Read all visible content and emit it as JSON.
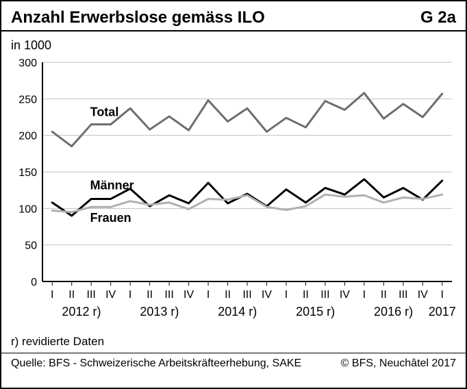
{
  "title": "Anzahl Erwerbslose gemäss ILO",
  "code": "G 2a",
  "subtitle": "in 1000",
  "note": "r) revidierte Daten",
  "source": "Quelle: BFS - Schweizerische Arbeitskräfteerhebung, SAKE",
  "copyright": "© BFS, Neuchâtel 2017",
  "chart": {
    "type": "line",
    "background_color": "#ffffff",
    "grid_color": "#bfbfbf",
    "grid_width": 1,
    "axis_color": "#000000",
    "axis_width": 2,
    "label_fontsize": 18,
    "tick_fontsize": 16,
    "ylim": [
      0,
      300
    ],
    "ytick_step": 50,
    "x_labels_minor": [
      "I",
      "II",
      "III",
      "IV",
      "I",
      "II",
      "III",
      "IV",
      "I",
      "II",
      "III",
      "IV",
      "I",
      "II",
      "III",
      "IV",
      "I",
      "II",
      "III",
      "IV",
      "I"
    ],
    "x_labels_major": [
      "2012 r)",
      "2013 r)",
      "2014 r)",
      "2015 r)",
      "2016 r)",
      "2017"
    ],
    "x_major_span": [
      4,
      4,
      4,
      4,
      4,
      1
    ],
    "series": {
      "total": {
        "label": "Total",
        "color": "#6d6d6d",
        "width": 3,
        "values": [
          205,
          185,
          215,
          215,
          237,
          208,
          226,
          207,
          248,
          219,
          237,
          205,
          224,
          211,
          247,
          235,
          258,
          223,
          243,
          225,
          257
        ]
      },
      "maenner": {
        "label": "Männer",
        "color": "#000000",
        "width": 3,
        "values": [
          108,
          90,
          113,
          113,
          127,
          103,
          118,
          107,
          135,
          107,
          120,
          103,
          126,
          108,
          128,
          119,
          140,
          115,
          128,
          112,
          138
        ]
      },
      "frauen": {
        "label": "Frauen",
        "color": "#b0b0b0",
        "width": 3,
        "values": [
          97,
          95,
          102,
          102,
          110,
          105,
          108,
          99,
          113,
          112,
          118,
          102,
          98,
          103,
          119,
          116,
          118,
          108,
          115,
          113,
          119
        ]
      }
    },
    "series_label_fontsize": 18,
    "series_label_positions": {
      "total": {
        "at_index": 3,
        "dy": -12,
        "dx": -30
      },
      "maenner": {
        "at_index": 3,
        "dy": -14,
        "dx": -30
      },
      "frauen": {
        "at_index": 3,
        "dy": 22,
        "dx": -30
      }
    }
  }
}
